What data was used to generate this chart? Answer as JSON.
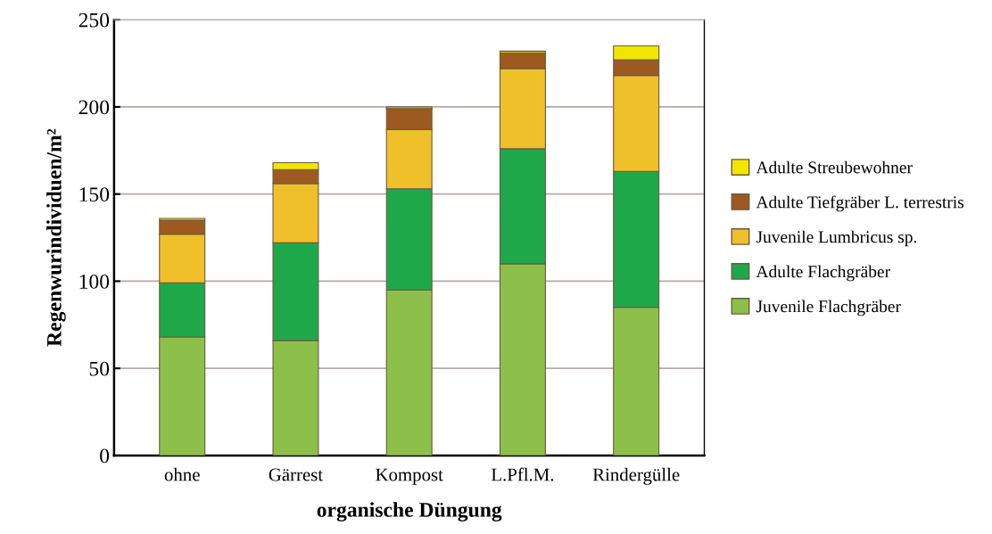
{
  "chart_data": {
    "type": "bar",
    "stacked": true,
    "xlabel": "organische Düngung",
    "ylabel": "Regenwurindividuen/m²",
    "categories": [
      "ohne",
      "Gärrest",
      "Kompost",
      "L.Pfl.M.",
      "Rindergülle"
    ],
    "series": [
      {
        "name": "Juvenile Flachgräber",
        "color": "#8dc04a",
        "values": [
          68,
          66,
          95,
          110,
          85
        ]
      },
      {
        "name": "Adulte Flachgräber",
        "color": "#1ea84a",
        "values": [
          31,
          56,
          58,
          66,
          78
        ]
      },
      {
        "name": "Juvenile Lumbricus sp.",
        "color": "#f0c02a",
        "values": [
          28,
          34,
          34,
          46,
          55
        ]
      },
      {
        "name": "Adulte Tiefgräber L. terrestris",
        "color": "#9c5a20",
        "values": [
          8,
          8,
          12,
          9,
          9
        ]
      },
      {
        "name": "Adulte Streubewohner",
        "color": "#f2e600",
        "values": [
          1,
          4,
          1,
          1,
          8
        ]
      }
    ],
    "ylim": [
      0,
      250
    ],
    "yticks": [
      0,
      50,
      100,
      150,
      200,
      250
    ],
    "grid": "y",
    "legend": "right"
  }
}
